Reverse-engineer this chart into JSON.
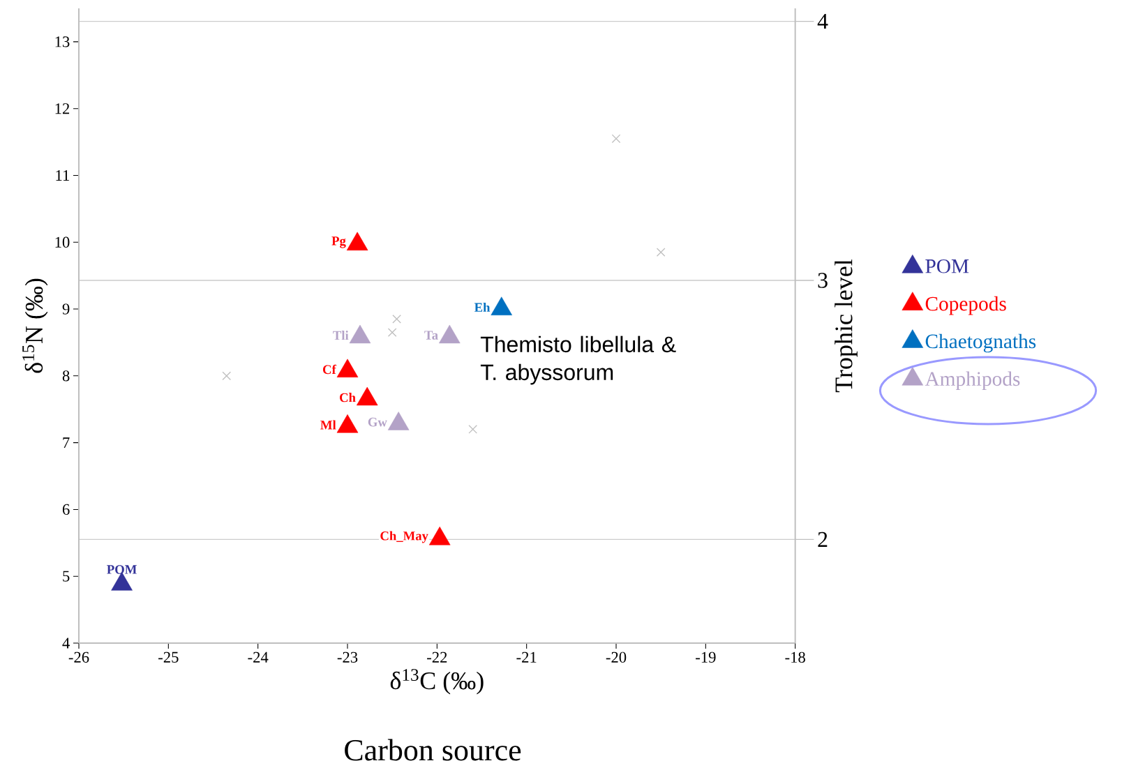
{
  "chart_data": {
    "type": "scatter",
    "xlabel": "δ$^{13}$C (‰)",
    "ylabel": "δ$^{15}$N (‰)",
    "y2label": "Trophic level",
    "xlim": [
      -26,
      -18
    ],
    "xticks": [
      -26,
      -25,
      -24,
      -23,
      -22,
      -21,
      -20,
      -19,
      -18
    ],
    "ylim": [
      4,
      13.5
    ],
    "yticks": [
      4,
      5,
      6,
      7,
      8,
      9,
      10,
      11,
      12,
      13
    ],
    "y2lim": [
      1.6,
      4.05
    ],
    "y2ticks": [
      2,
      3,
      4
    ],
    "grid": "y2",
    "legend": "right",
    "marker": "triangle",
    "series": [
      {
        "name": "POM",
        "color": "#333399",
        "x": [
          -25.52
        ],
        "values": [
          4.88
        ]
      },
      {
        "name": "Copepods",
        "color": "#ff0000",
        "x": [
          -22.89,
          -23.0,
          -22.78,
          -23.0,
          -21.97
        ],
        "values": [
          9.97,
          8.07,
          7.65,
          7.24,
          5.56
        ]
      },
      {
        "name": "Chaetognaths",
        "color": "#0070c0",
        "x": [
          -21.28
        ],
        "values": [
          9.0
        ]
      },
      {
        "name": "Amphipods",
        "color": "#b3a2c7",
        "x": [
          -22.86,
          -21.86,
          -22.43
        ],
        "values": [
          8.58,
          8.58,
          7.28
        ]
      },
      {
        "color": "#bfbfbf",
        "marker": "cross",
        "x": [
          -24.35,
          -22.45,
          -22.5,
          -21.6,
          -20.0,
          -19.5
        ],
        "values": [
          8.0,
          8.85,
          8.65,
          7.2,
          11.55,
          9.85
        ]
      }
    ],
    "annotations": [
      "Themisto libellula & T. abyssorum",
      "Carbon source",
      {
        "text": "POM",
        "x": -25.52,
        "y": 4.88
      },
      {
        "text": "Pg",
        "x": -22.89,
        "y": 9.97
      },
      {
        "text": "Cf",
        "x": -23.0,
        "y": 8.07
      },
      {
        "text": "Ch",
        "x": -22.78,
        "y": 7.65
      },
      {
        "text": "Ml",
        "x": -23.0,
        "y": 7.24
      },
      {
        "text": "Ch_May",
        "x": -21.97,
        "y": 5.56
      },
      {
        "text": "Eh",
        "x": -21.28,
        "y": 9.0
      },
      {
        "text": "Tli",
        "x": -22.86,
        "y": 8.58
      },
      {
        "text": "Ta",
        "x": -21.86,
        "y": 8.58
      },
      {
        "text": "Gw",
        "x": -22.43,
        "y": 7.28
      }
    ]
  }
}
